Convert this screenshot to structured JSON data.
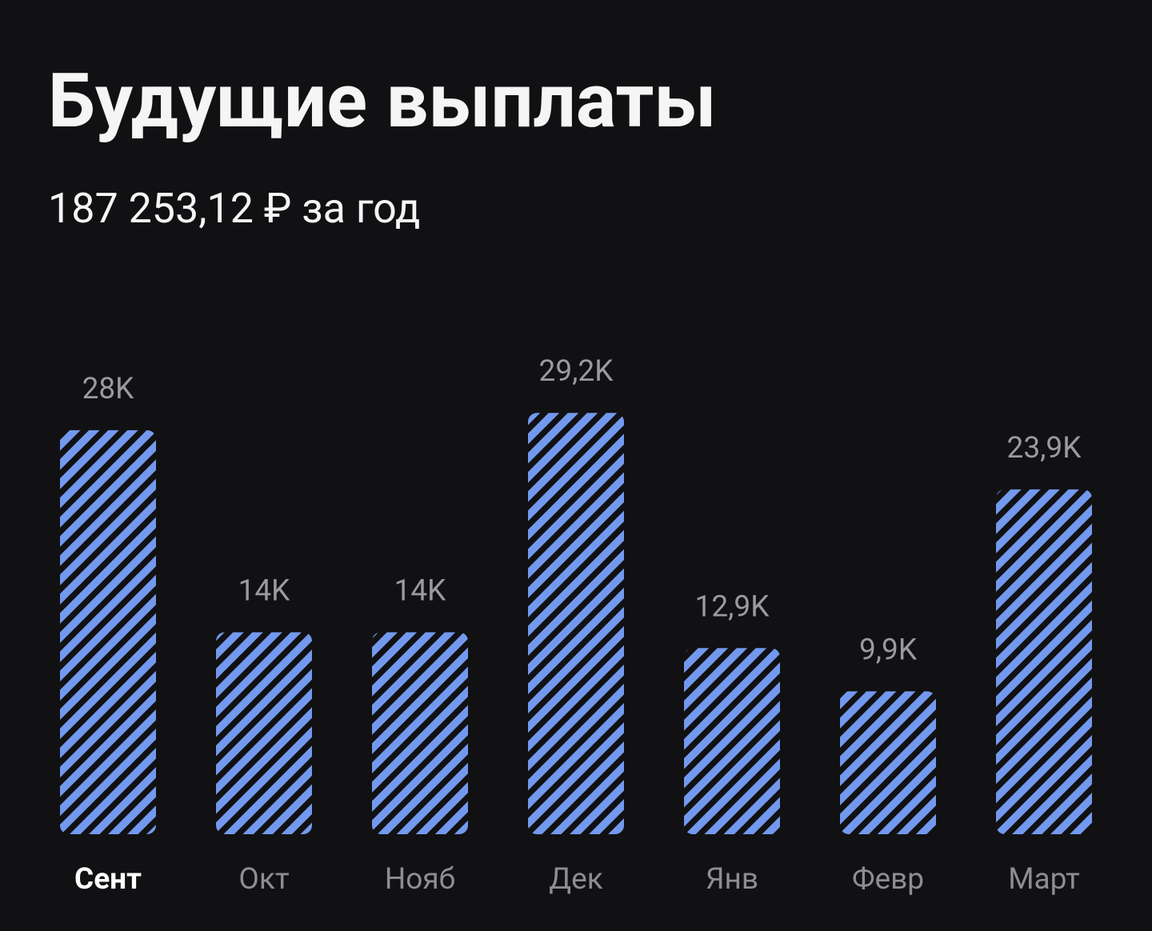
{
  "chart_data": {
    "type": "bar",
    "title": "Будущие выплаты",
    "subtitle": "187 253,12 ₽ за год",
    "categories": [
      "Сент",
      "Окт",
      "Нояб",
      "Дек",
      "Янв",
      "Февр",
      "Март"
    ],
    "values": [
      28,
      14,
      14,
      29.2,
      12.9,
      9.9,
      23.9
    ],
    "value_labels": [
      "28K",
      "14K",
      "14K",
      "29,2K",
      "12,9K",
      "9,9K",
      "23,9K"
    ],
    "color": "#7399ee",
    "selected_category": 0
  }
}
